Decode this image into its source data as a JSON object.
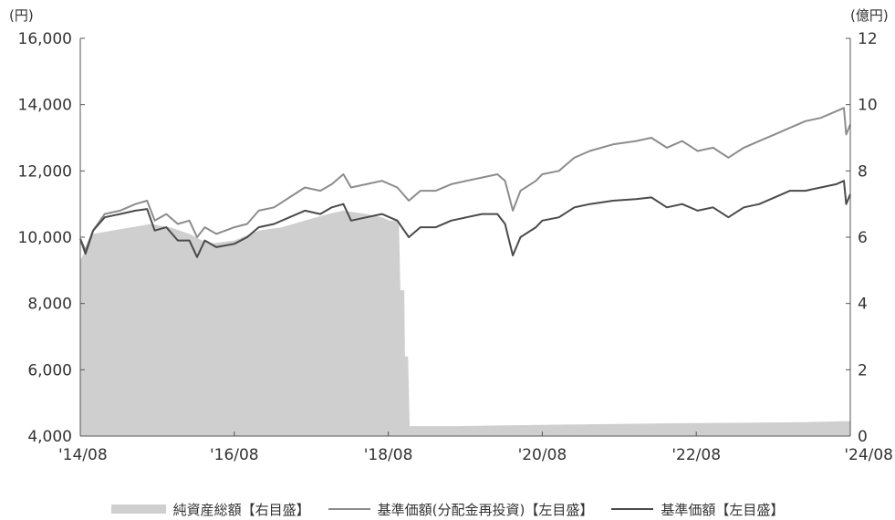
{
  "chart_data": {
    "type": "area+line",
    "title": "",
    "left_axis": {
      "unit": "(円)",
      "min": 4000,
      "max": 16000,
      "ticks": [
        4000,
        6000,
        8000,
        10000,
        12000,
        14000,
        16000
      ],
      "tick_labels": [
        "4,000",
        "6,000",
        "8,000",
        "10,000",
        "12,000",
        "14,000",
        "16,000"
      ]
    },
    "right_axis": {
      "unit": "(億円)",
      "min": 0,
      "max": 12,
      "ticks": [
        0,
        2,
        4,
        6,
        8,
        10,
        12
      ],
      "tick_labels": [
        "0",
        "2",
        "4",
        "6",
        "8",
        "10",
        "12"
      ]
    },
    "x_axis": {
      "start": 2014.583,
      "end": 2024.583,
      "ticks": [
        2014.583,
        2016.583,
        2018.583,
        2020.583,
        2022.583,
        2024.583
      ],
      "tick_labels": [
        "'14/08",
        "'16/08",
        "'18/08",
        "'20/08",
        "'22/08",
        "'24/08"
      ]
    },
    "grid": false,
    "legend_position": "bottom",
    "series": [
      {
        "name": "純資産総額【右目盛】",
        "axis": "right",
        "kind": "area",
        "color": "#cfcfcf",
        "points": [
          [
            2014.583,
            5.3
          ],
          [
            2014.65,
            5.6
          ],
          [
            2014.75,
            6.1
          ],
          [
            2015.0,
            6.2
          ],
          [
            2015.25,
            6.3
          ],
          [
            2015.5,
            6.4
          ],
          [
            2015.75,
            6.3
          ],
          [
            2016.0,
            6.1
          ],
          [
            2016.25,
            5.8
          ],
          [
            2016.583,
            5.9
          ],
          [
            2016.9,
            6.2
          ],
          [
            2017.2,
            6.3
          ],
          [
            2017.5,
            6.5
          ],
          [
            2017.8,
            6.7
          ],
          [
            2018.0,
            6.8
          ],
          [
            2018.3,
            6.7
          ],
          [
            2018.5,
            6.6
          ],
          [
            2018.6,
            6.5
          ],
          [
            2018.72,
            6.5
          ],
          [
            2018.74,
            4.4
          ],
          [
            2018.79,
            4.4
          ],
          [
            2018.8,
            2.4
          ],
          [
            2018.84,
            2.4
          ],
          [
            2018.86,
            0.3
          ],
          [
            2019.5,
            0.3
          ],
          [
            2020.0,
            0.32
          ],
          [
            2021.0,
            0.35
          ],
          [
            2022.0,
            0.38
          ],
          [
            2023.0,
            0.4
          ],
          [
            2024.0,
            0.42
          ],
          [
            2024.583,
            0.45
          ]
        ]
      },
      {
        "name": "基準価額(分配金再投資)【左目盛】",
        "axis": "left",
        "kind": "line",
        "color": "#8c8c8c",
        "points": [
          [
            2014.583,
            9950
          ],
          [
            2014.65,
            9600
          ],
          [
            2014.75,
            10200
          ],
          [
            2014.9,
            10700
          ],
          [
            2015.1,
            10800
          ],
          [
            2015.3,
            11000
          ],
          [
            2015.45,
            11100
          ],
          [
            2015.55,
            10500
          ],
          [
            2015.7,
            10700
          ],
          [
            2015.85,
            10400
          ],
          [
            2016.0,
            10500
          ],
          [
            2016.1,
            10000
          ],
          [
            2016.2,
            10300
          ],
          [
            2016.35,
            10100
          ],
          [
            2016.583,
            10300
          ],
          [
            2016.75,
            10400
          ],
          [
            2016.9,
            10800
          ],
          [
            2017.1,
            10900
          ],
          [
            2017.3,
            11200
          ],
          [
            2017.5,
            11500
          ],
          [
            2017.7,
            11400
          ],
          [
            2017.85,
            11600
          ],
          [
            2018.0,
            11900
          ],
          [
            2018.1,
            11500
          ],
          [
            2018.3,
            11600
          ],
          [
            2018.5,
            11700
          ],
          [
            2018.7,
            11500
          ],
          [
            2018.85,
            11100
          ],
          [
            2019.0,
            11400
          ],
          [
            2019.2,
            11400
          ],
          [
            2019.4,
            11600
          ],
          [
            2019.6,
            11700
          ],
          [
            2019.8,
            11800
          ],
          [
            2020.0,
            11900
          ],
          [
            2020.1,
            11700
          ],
          [
            2020.2,
            10800
          ],
          [
            2020.3,
            11400
          ],
          [
            2020.5,
            11700
          ],
          [
            2020.583,
            11900
          ],
          [
            2020.8,
            12000
          ],
          [
            2021.0,
            12400
          ],
          [
            2021.2,
            12600
          ],
          [
            2021.5,
            12800
          ],
          [
            2021.8,
            12900
          ],
          [
            2022.0,
            13000
          ],
          [
            2022.2,
            12700
          ],
          [
            2022.4,
            12900
          ],
          [
            2022.6,
            12600
          ],
          [
            2022.8,
            12700
          ],
          [
            2023.0,
            12400
          ],
          [
            2023.2,
            12700
          ],
          [
            2023.4,
            12900
          ],
          [
            2023.6,
            13100
          ],
          [
            2023.8,
            13300
          ],
          [
            2024.0,
            13500
          ],
          [
            2024.2,
            13600
          ],
          [
            2024.4,
            13800
          ],
          [
            2024.5,
            13900
          ],
          [
            2024.53,
            13100
          ],
          [
            2024.583,
            13400
          ]
        ]
      },
      {
        "name": "基準価額【左目盛】",
        "axis": "left",
        "kind": "line",
        "color": "#4a4a4a",
        "points": [
          [
            2014.583,
            9950
          ],
          [
            2014.65,
            9500
          ],
          [
            2014.75,
            10200
          ],
          [
            2014.9,
            10600
          ],
          [
            2015.1,
            10700
          ],
          [
            2015.3,
            10800
          ],
          [
            2015.45,
            10850
          ],
          [
            2015.55,
            10200
          ],
          [
            2015.7,
            10300
          ],
          [
            2015.85,
            9900
          ],
          [
            2016.0,
            9900
          ],
          [
            2016.1,
            9400
          ],
          [
            2016.2,
            9900
          ],
          [
            2016.35,
            9700
          ],
          [
            2016.583,
            9800
          ],
          [
            2016.75,
            10000
          ],
          [
            2016.9,
            10300
          ],
          [
            2017.1,
            10400
          ],
          [
            2017.3,
            10600
          ],
          [
            2017.5,
            10800
          ],
          [
            2017.7,
            10700
          ],
          [
            2017.85,
            10900
          ],
          [
            2018.0,
            11000
          ],
          [
            2018.1,
            10500
          ],
          [
            2018.3,
            10600
          ],
          [
            2018.5,
            10700
          ],
          [
            2018.7,
            10500
          ],
          [
            2018.85,
            10000
          ],
          [
            2019.0,
            10300
          ],
          [
            2019.2,
            10300
          ],
          [
            2019.4,
            10500
          ],
          [
            2019.6,
            10600
          ],
          [
            2019.8,
            10700
          ],
          [
            2020.0,
            10700
          ],
          [
            2020.1,
            10400
          ],
          [
            2020.2,
            9450
          ],
          [
            2020.3,
            10000
          ],
          [
            2020.5,
            10300
          ],
          [
            2020.583,
            10500
          ],
          [
            2020.8,
            10600
          ],
          [
            2021.0,
            10900
          ],
          [
            2021.2,
            11000
          ],
          [
            2021.5,
            11100
          ],
          [
            2021.8,
            11150
          ],
          [
            2022.0,
            11200
          ],
          [
            2022.2,
            10900
          ],
          [
            2022.4,
            11000
          ],
          [
            2022.6,
            10800
          ],
          [
            2022.8,
            10900
          ],
          [
            2023.0,
            10600
          ],
          [
            2023.2,
            10900
          ],
          [
            2023.4,
            11000
          ],
          [
            2023.6,
            11200
          ],
          [
            2023.8,
            11400
          ],
          [
            2024.0,
            11400
          ],
          [
            2024.2,
            11500
          ],
          [
            2024.4,
            11600
          ],
          [
            2024.5,
            11700
          ],
          [
            2024.53,
            11000
          ],
          [
            2024.583,
            11300
          ]
        ]
      }
    ]
  }
}
